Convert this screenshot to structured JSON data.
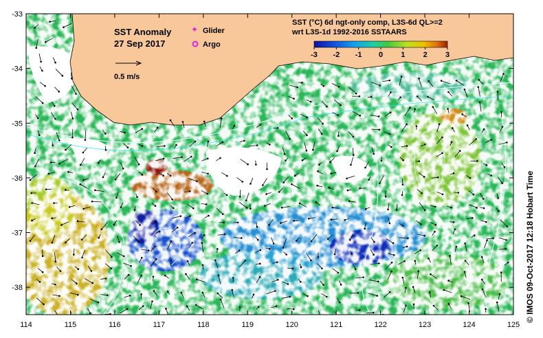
{
  "title": {
    "line1": "SST Anomaly",
    "line2": "27 Sep 2017"
  },
  "legend": {
    "glider_label": "Glider",
    "argo_label": "Argo",
    "glider_color": "#e020e0",
    "argo_color": "#e020e0",
    "scale_label": "0.5 m/s"
  },
  "colorbar": {
    "heading_line1": "SST (°C) 6d ngt-only comp, L3S-6d QL>=2",
    "heading_line2": "wrt L3S-1d 1992-2016 SSTAARS",
    "ticks": [
      "-3",
      "-2",
      "-1",
      "0",
      "1",
      "2",
      "3"
    ],
    "colors": [
      "#1010a0",
      "#1050e0",
      "#10a0f0",
      "#20d0a0",
      "#40c840",
      "#c0e020",
      "#f0c000",
      "#e07010",
      "#a02000"
    ]
  },
  "axes": {
    "x_ticks": [
      "114",
      "115",
      "116",
      "117",
      "118",
      "119",
      "120",
      "121",
      "122",
      "123",
      "124",
      "125"
    ],
    "y_ticks": [
      "-33",
      "-34",
      "-35",
      "-36",
      "-37",
      "-38"
    ],
    "xlim": [
      114,
      125
    ],
    "ylim": [
      -38.5,
      -33
    ]
  },
  "colors": {
    "land": "#f8c89a",
    "no_data": "#ffffff",
    "contour": "#e8f8ff"
  },
  "credit": "© IMOS 09-Oct-2017 12:18 Hobart Time"
}
